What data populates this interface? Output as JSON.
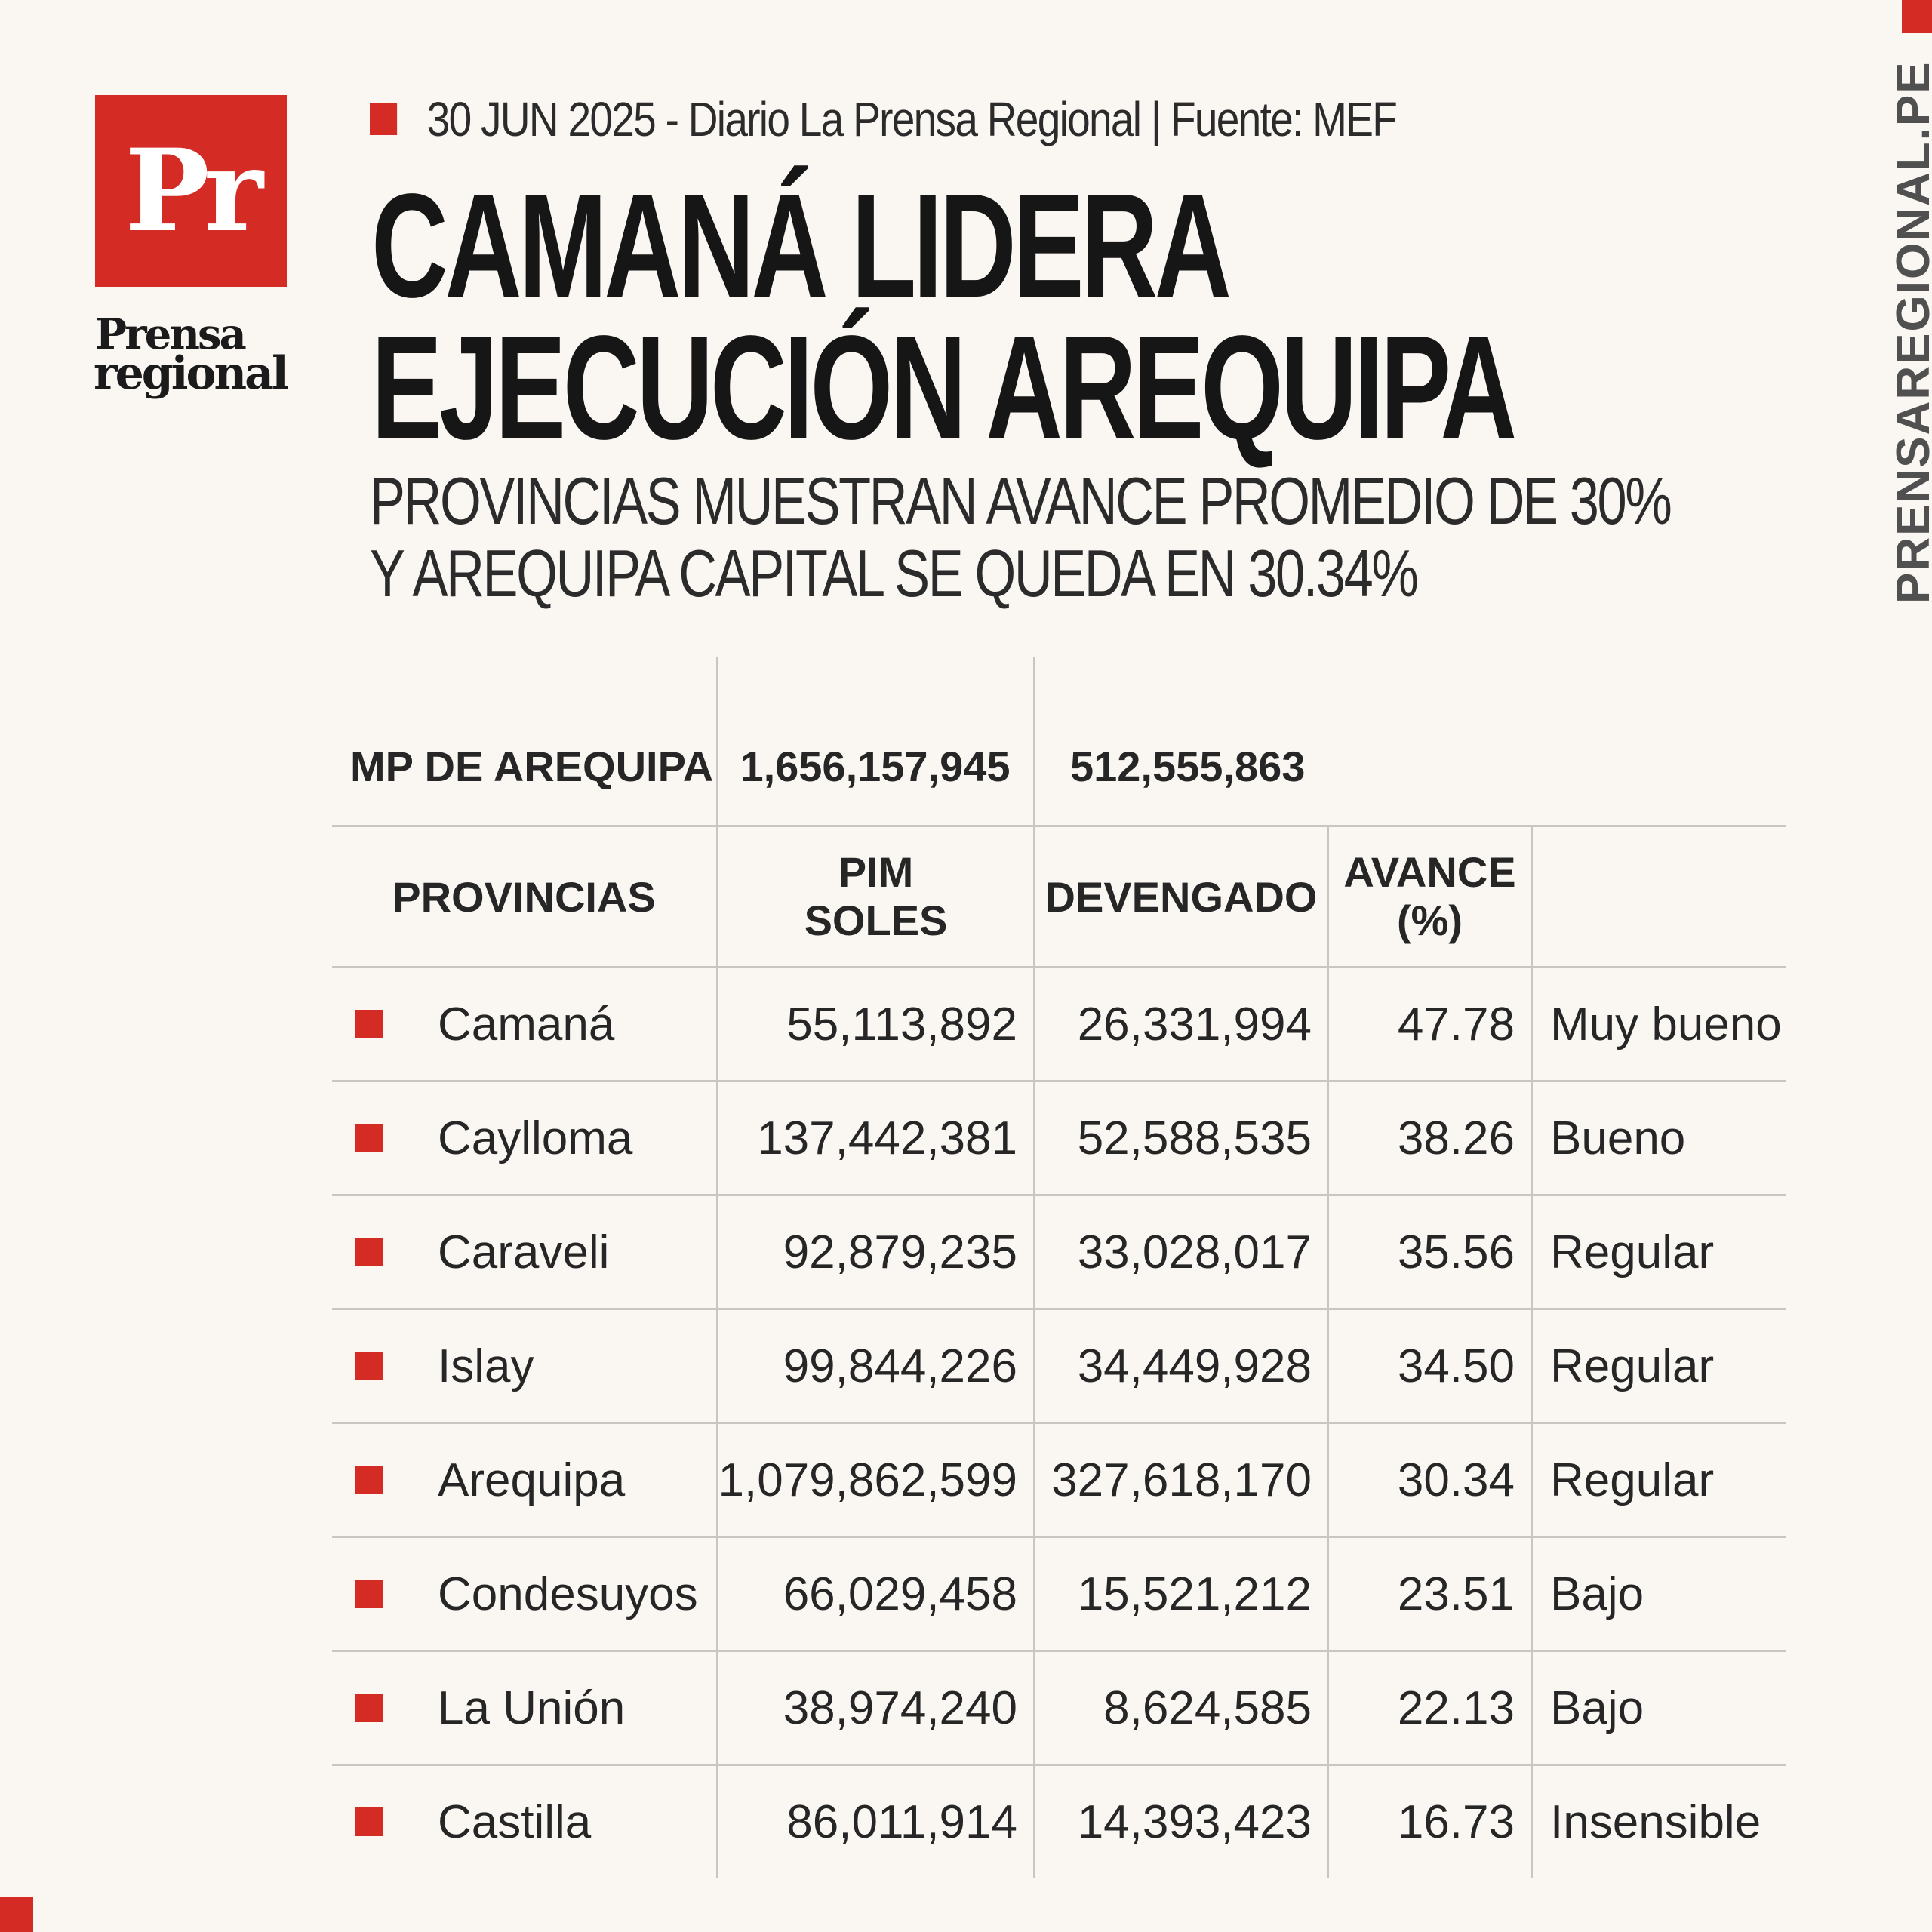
{
  "brand": {
    "logo_mark": "Pr",
    "logo_word_1": "Prensa",
    "logo_word_2": "regional",
    "side_url": "PRENSAREGIONAL.PE",
    "accent_color": "#d42b25"
  },
  "header": {
    "dateline": "30 JUN 2025 -  Diario La Prensa Regional | Fuente: MEF",
    "headline_line1": "CAMANÁ LIDERA",
    "headline_line2": "EJECUCIÓN AREQUIPA",
    "subhead_line1": "PROVINCIAS MUESTRAN AVANCE PROMEDIO DE 30%",
    "subhead_line2": "Y AREQUIPA CAPITAL SE QUEDA EN 30.34%"
  },
  "table": {
    "top_row": {
      "label": "MP DE AREQUIPA",
      "pim": "1,656,157,945",
      "devengado": "512,555,863"
    },
    "headers": {
      "provincias": "PROVINCIAS",
      "pim_1": "PIM",
      "pim_2": "SOLES",
      "devengado": "DEVENGADO",
      "avance_1": "AVANCE",
      "avance_2": "(%)"
    },
    "rows": [
      {
        "provincia": "Camaná",
        "pim": "55,113,892",
        "devengado": "26,331,994",
        "avance": "47.78",
        "calificacion": "Muy bueno"
      },
      {
        "provincia": "Caylloma",
        "pim": "137,442,381",
        "devengado": "52,588,535",
        "avance": "38.26",
        "calificacion": "Bueno"
      },
      {
        "provincia": "Caraveli",
        "pim": "92,879,235",
        "devengado": "33,028,017",
        "avance": "35.56",
        "calificacion": "Regular"
      },
      {
        "provincia": "Islay",
        "pim": "99,844,226",
        "devengado": "34,449,928",
        "avance": "34.50",
        "calificacion": "Regular"
      },
      {
        "provincia": "Arequipa",
        "pim": "1,079,862,599",
        "devengado": "327,618,170",
        "avance": "30.34",
        "calificacion": "Regular"
      },
      {
        "provincia": "Condesuyos",
        "pim": "66,029,458",
        "devengado": "15,521,212",
        "avance": "23.51",
        "calificacion": "Bajo"
      },
      {
        "provincia": "La Unión",
        "pim": "38,974,240",
        "devengado": "8,624,585",
        "avance": "22.13",
        "calificacion": "Bajo"
      },
      {
        "provincia": "Castilla",
        "pim": "86,011,914",
        "devengado": "14,393,423",
        "avance": "16.73",
        "calificacion": "Insensible"
      }
    ]
  },
  "chart_data": {
    "type": "table",
    "columns": [
      "PROVINCIAS",
      "PIM SOLES",
      "DEVENGADO",
      "AVANCE (%)",
      ""
    ],
    "summary_row": [
      "MP DE AREQUIPA",
      1656157945,
      512555863,
      null,
      ""
    ],
    "rows": [
      [
        "Camaná",
        55113892,
        26331994,
        47.78,
        "Muy bueno"
      ],
      [
        "Caylloma",
        137442381,
        52588535,
        38.26,
        "Bueno"
      ],
      [
        "Caraveli",
        92879235,
        33028017,
        35.56,
        "Regular"
      ],
      [
        "Islay",
        99844226,
        34449928,
        34.5,
        "Regular"
      ],
      [
        "Arequipa",
        1079862599,
        327618170,
        30.34,
        "Regular"
      ],
      [
        "Condesuyos",
        66029458,
        15521212,
        23.51,
        "Bajo"
      ],
      [
        "La Unión",
        38974240,
        8624585,
        22.13,
        "Bajo"
      ],
      [
        "Castilla",
        86011914,
        14393423,
        16.73,
        "Insensible"
      ]
    ]
  }
}
